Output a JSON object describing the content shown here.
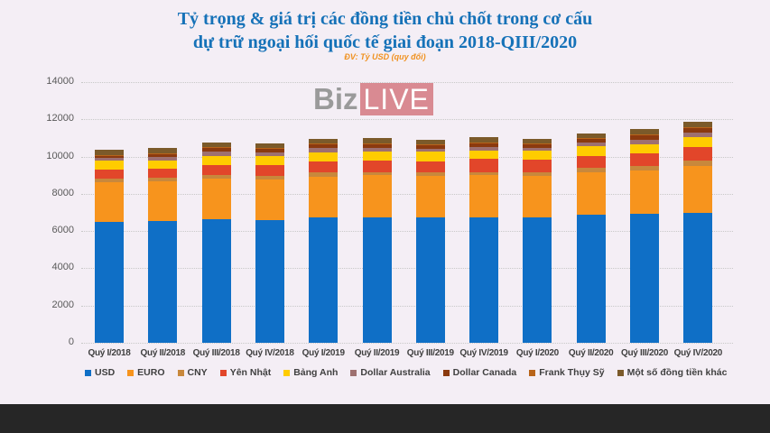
{
  "title_line1": "Tỷ trọng & giá trị các đồng tiền chủ chốt trong cơ cấu",
  "title_line2": "dự trữ ngoại hối quốc tế giai đoạn 2018-QIII/2020",
  "unit": "ĐV: Tỷ USD (quy đổi)",
  "logo": {
    "part1": "Biz",
    "part2": "LIVE"
  },
  "chart_data": {
    "type": "bar",
    "stacked": true,
    "title": "Tỷ trọng & giá trị các đồng tiền chủ chốt trong cơ cấu dự trữ ngoại hối quốc tế giai đoạn 2018-QIII/2020",
    "subtitle": "ĐV: Tỷ USD (quy đổi)",
    "xlabel": "",
    "ylabel": "",
    "ylim": [
      0,
      14000
    ],
    "yticks": [
      0,
      2000,
      4000,
      6000,
      8000,
      10000,
      12000,
      14000
    ],
    "grid": true,
    "legend_position": "bottom",
    "categories": [
      "Quý I/2018",
      "Quý II/2018",
      "Quý III/2018",
      "Quý IV/2018",
      "Quý I/2019",
      "Quý II/2019",
      "Quý III/2019",
      "Quý IV/2019",
      "Quý I/2020",
      "Quý II/2020",
      "Quý III/2020",
      "Quý IV/2020"
    ],
    "series": [
      {
        "name": "USD",
        "color": "#0f6fc6",
        "values": [
          6490,
          6540,
          6630,
          6590,
          6730,
          6730,
          6730,
          6730,
          6730,
          6880,
          6930,
          6980
        ]
      },
      {
        "name": "EURO",
        "color": "#f7941d",
        "values": [
          2130,
          2140,
          2210,
          2200,
          2180,
          2260,
          2210,
          2260,
          2230,
          2270,
          2320,
          2520
        ]
      },
      {
        "name": "CNY",
        "color": "#c8883c",
        "values": [
          190,
          200,
          190,
          190,
          240,
          190,
          240,
          190,
          190,
          240,
          240,
          290
        ]
      },
      {
        "name": "Yên Nhật",
        "color": "#e2462a",
        "values": [
          480,
          480,
          530,
          580,
          580,
          630,
          580,
          680,
          680,
          630,
          680,
          730
        ]
      },
      {
        "name": "Bảng Anh",
        "color": "#ffcc00",
        "values": [
          480,
          450,
          480,
          480,
          480,
          480,
          530,
          480,
          480,
          530,
          480,
          530
        ]
      },
      {
        "name": "Dollar Australia",
        "color": "#9e7070",
        "values": [
          150,
          170,
          240,
          190,
          240,
          190,
          150,
          190,
          150,
          190,
          240,
          240
        ]
      },
      {
        "name": "Dollar Canada",
        "color": "#8b3a0f",
        "values": [
          130,
          150,
          190,
          190,
          190,
          190,
          190,
          200,
          200,
          200,
          240,
          240
        ]
      },
      {
        "name": "Frank Thụy Sỹ",
        "color": "#b8641a",
        "values": [
          50,
          50,
          50,
          50,
          50,
          50,
          50,
          50,
          50,
          50,
          50,
          50
        ]
      },
      {
        "name": "Một số đồng tiền khác",
        "color": "#7b5a2a",
        "values": [
          250,
          280,
          240,
          250,
          240,
          290,
          240,
          290,
          240,
          250,
          310,
          290
        ]
      }
    ]
  },
  "legend": [
    {
      "label": "USD",
      "color": "#0f6fc6"
    },
    {
      "label": "EURO",
      "color": "#f7941d"
    },
    {
      "label": "CNY",
      "color": "#c8883c"
    },
    {
      "label": "Yên Nhật",
      "color": "#e2462a"
    },
    {
      "label": "Bảng Anh",
      "color": "#ffcc00"
    },
    {
      "label": "Dollar Australia",
      "color": "#9e7070"
    },
    {
      "label": "Dollar Canada",
      "color": "#8b3a0f"
    },
    {
      "label": "Frank Thụy Sỹ",
      "color": "#b8641a"
    },
    {
      "label": "Một số đồng tiền khác",
      "color": "#7b5a2a"
    }
  ]
}
